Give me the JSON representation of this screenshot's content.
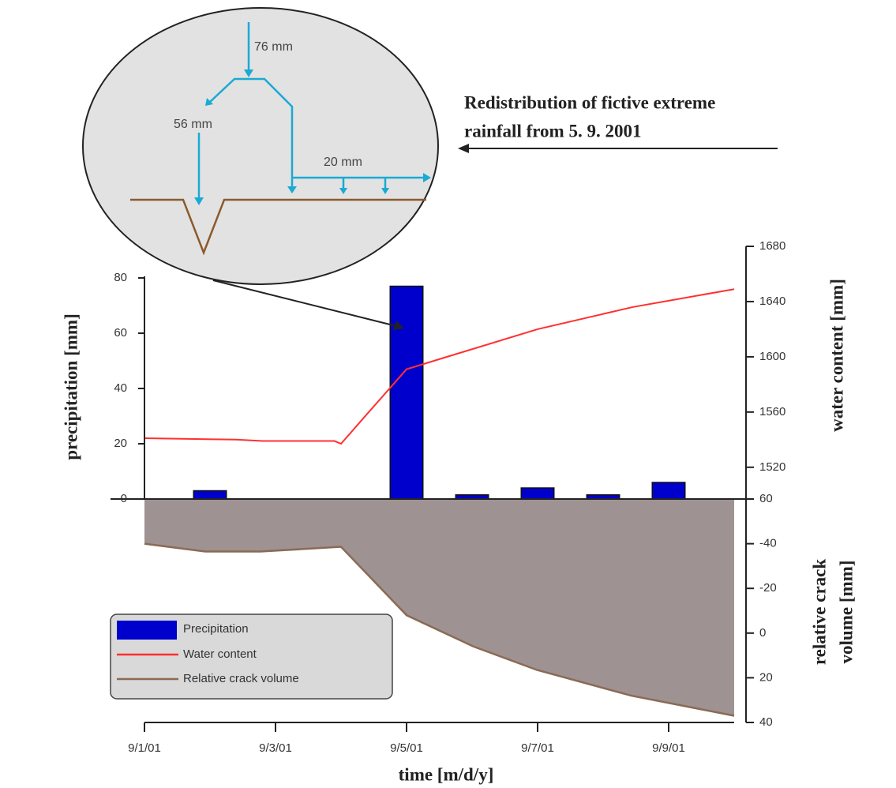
{
  "chart_data": {
    "type": "combo",
    "xlabel": "time [m/d/y]",
    "ylabel": "precipitation [mm]",
    "y2label": "water content [mm]",
    "y3label": [
      "relative crack",
      "volume [mm]"
    ],
    "xlim": [
      1,
      10
    ],
    "xticks": [
      {
        "value": 1,
        "label": "9/1/01"
      },
      {
        "value": 3,
        "label": "9/3/01"
      },
      {
        "value": 5,
        "label": "9/5/01"
      },
      {
        "value": 7,
        "label": "9/7/01"
      },
      {
        "value": 9,
        "label": "9/9/01"
      }
    ],
    "ylim": [
      0,
      80
    ],
    "yticks": [
      0,
      20,
      40,
      60,
      80
    ],
    "y2lim": [
      1497,
      1680
    ],
    "y2ticks": [
      1520,
      1560,
      1600,
      1640,
      1680
    ],
    "y3lim": [
      -60,
      40
    ],
    "y3ticks": [
      {
        "value": -60,
        "label": "60"
      },
      -40,
      -20,
      0,
      20,
      40
    ],
    "series": [
      {
        "name": "Precipitation",
        "type": "bar",
        "color": "#0000cc",
        "x": [
          2,
          5,
          6,
          7,
          8,
          9
        ],
        "values": [
          3,
          77,
          1.5,
          4,
          1.5,
          6
        ]
      },
      {
        "name": "Water content",
        "type": "line",
        "axis": "y2",
        "color": "#ff3030",
        "x": [
          1,
          2.4,
          2.8,
          3.9,
          4.0,
          4.35,
          5.0,
          5.55,
          7.0,
          8.45,
          10
        ],
        "values": [
          1541,
          1540,
          1539,
          1539,
          1537,
          1556,
          1591,
          1599,
          1620,
          1636,
          1649
        ]
      },
      {
        "name": "Relative crack volume",
        "type": "area",
        "axis": "y3",
        "color": "#8b6a55",
        "fill": "#9e9292",
        "x": [
          1,
          1.93,
          2.77,
          4.0,
          5.0,
          6.02,
          6.99,
          8.43,
          10
        ],
        "values": [
          -40,
          -36.5,
          -36.5,
          -38.6,
          -8,
          6,
          16.5,
          28,
          37
        ]
      }
    ],
    "annotations": {
      "inset": [
        "76 mm",
        "56 mm",
        "20 mm"
      ],
      "note": [
        "Redistribution of fictive extreme",
        "rainfall from 5. 9. 2001"
      ]
    }
  }
}
